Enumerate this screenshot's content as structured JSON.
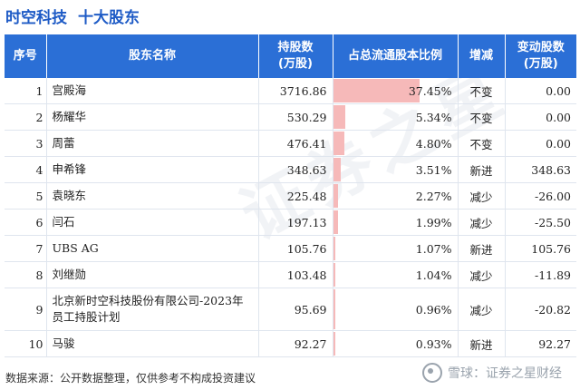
{
  "header": {
    "company": "时空科技",
    "subtitle": "十大股东"
  },
  "columns": {
    "idx": "序号",
    "name": "股东名称",
    "shares_l1": "持股数",
    "shares_l2": "(万股)",
    "ratio": "占总流通股本比例",
    "trend": "增减",
    "change_l1": "变动股数",
    "change_l2": "(万股)"
  },
  "rows": [
    {
      "idx": "1",
      "name": "宫殿海",
      "shares": "3716.86",
      "ratio": "37.45%",
      "ratio_pct": 37.45,
      "trend": "不变",
      "trend_type": "same",
      "change": "0.00"
    },
    {
      "idx": "2",
      "name": "杨耀华",
      "shares": "530.29",
      "ratio": "5.34%",
      "ratio_pct": 5.34,
      "trend": "不变",
      "trend_type": "same",
      "change": "0.00"
    },
    {
      "idx": "3",
      "name": "周蕾",
      "shares": "476.41",
      "ratio": "4.80%",
      "ratio_pct": 4.8,
      "trend": "不变",
      "trend_type": "same",
      "change": "0.00"
    },
    {
      "idx": "4",
      "name": "申希锋",
      "shares": "348.63",
      "ratio": "3.51%",
      "ratio_pct": 3.51,
      "trend": "新进",
      "trend_type": "new",
      "change": "348.63"
    },
    {
      "idx": "5",
      "name": "袁晓东",
      "shares": "225.48",
      "ratio": "2.27%",
      "ratio_pct": 2.27,
      "trend": "减少",
      "trend_type": "down",
      "change": "-26.00"
    },
    {
      "idx": "6",
      "name": "闫石",
      "shares": "197.13",
      "ratio": "1.99%",
      "ratio_pct": 1.99,
      "trend": "减少",
      "trend_type": "down",
      "change": "-25.50"
    },
    {
      "idx": "7",
      "name": "UBS AG",
      "shares": "105.76",
      "ratio": "1.07%",
      "ratio_pct": 1.07,
      "trend": "新进",
      "trend_type": "new",
      "change": "105.76"
    },
    {
      "idx": "8",
      "name": "刘继勋",
      "shares": "103.48",
      "ratio": "1.04%",
      "ratio_pct": 1.04,
      "trend": "减少",
      "trend_type": "down",
      "change": "-11.89"
    },
    {
      "idx": "9",
      "name": "北京新时空科技股份有限公司-2023年员工持股计划",
      "shares": "95.69",
      "ratio": "0.96%",
      "ratio_pct": 0.96,
      "trend": "减少",
      "trend_type": "down",
      "change": "-20.82"
    },
    {
      "idx": "10",
      "name": "马骏",
      "shares": "92.27",
      "ratio": "0.93%",
      "ratio_pct": 0.93,
      "trend": "新进",
      "trend_type": "new",
      "change": "92.27"
    }
  ],
  "footer": {
    "source": "数据来源：公开数据整理，仅供参考不构成投资建议"
  },
  "brand": {
    "text": "雪球：证券之星财经"
  },
  "watermark": "证券之星",
  "colors": {
    "header_bg": "#2b6fd6",
    "title": "#1e5bc6",
    "bar": "#f6b9b9",
    "new": "#e02525",
    "down": "#1a9a3a"
  }
}
